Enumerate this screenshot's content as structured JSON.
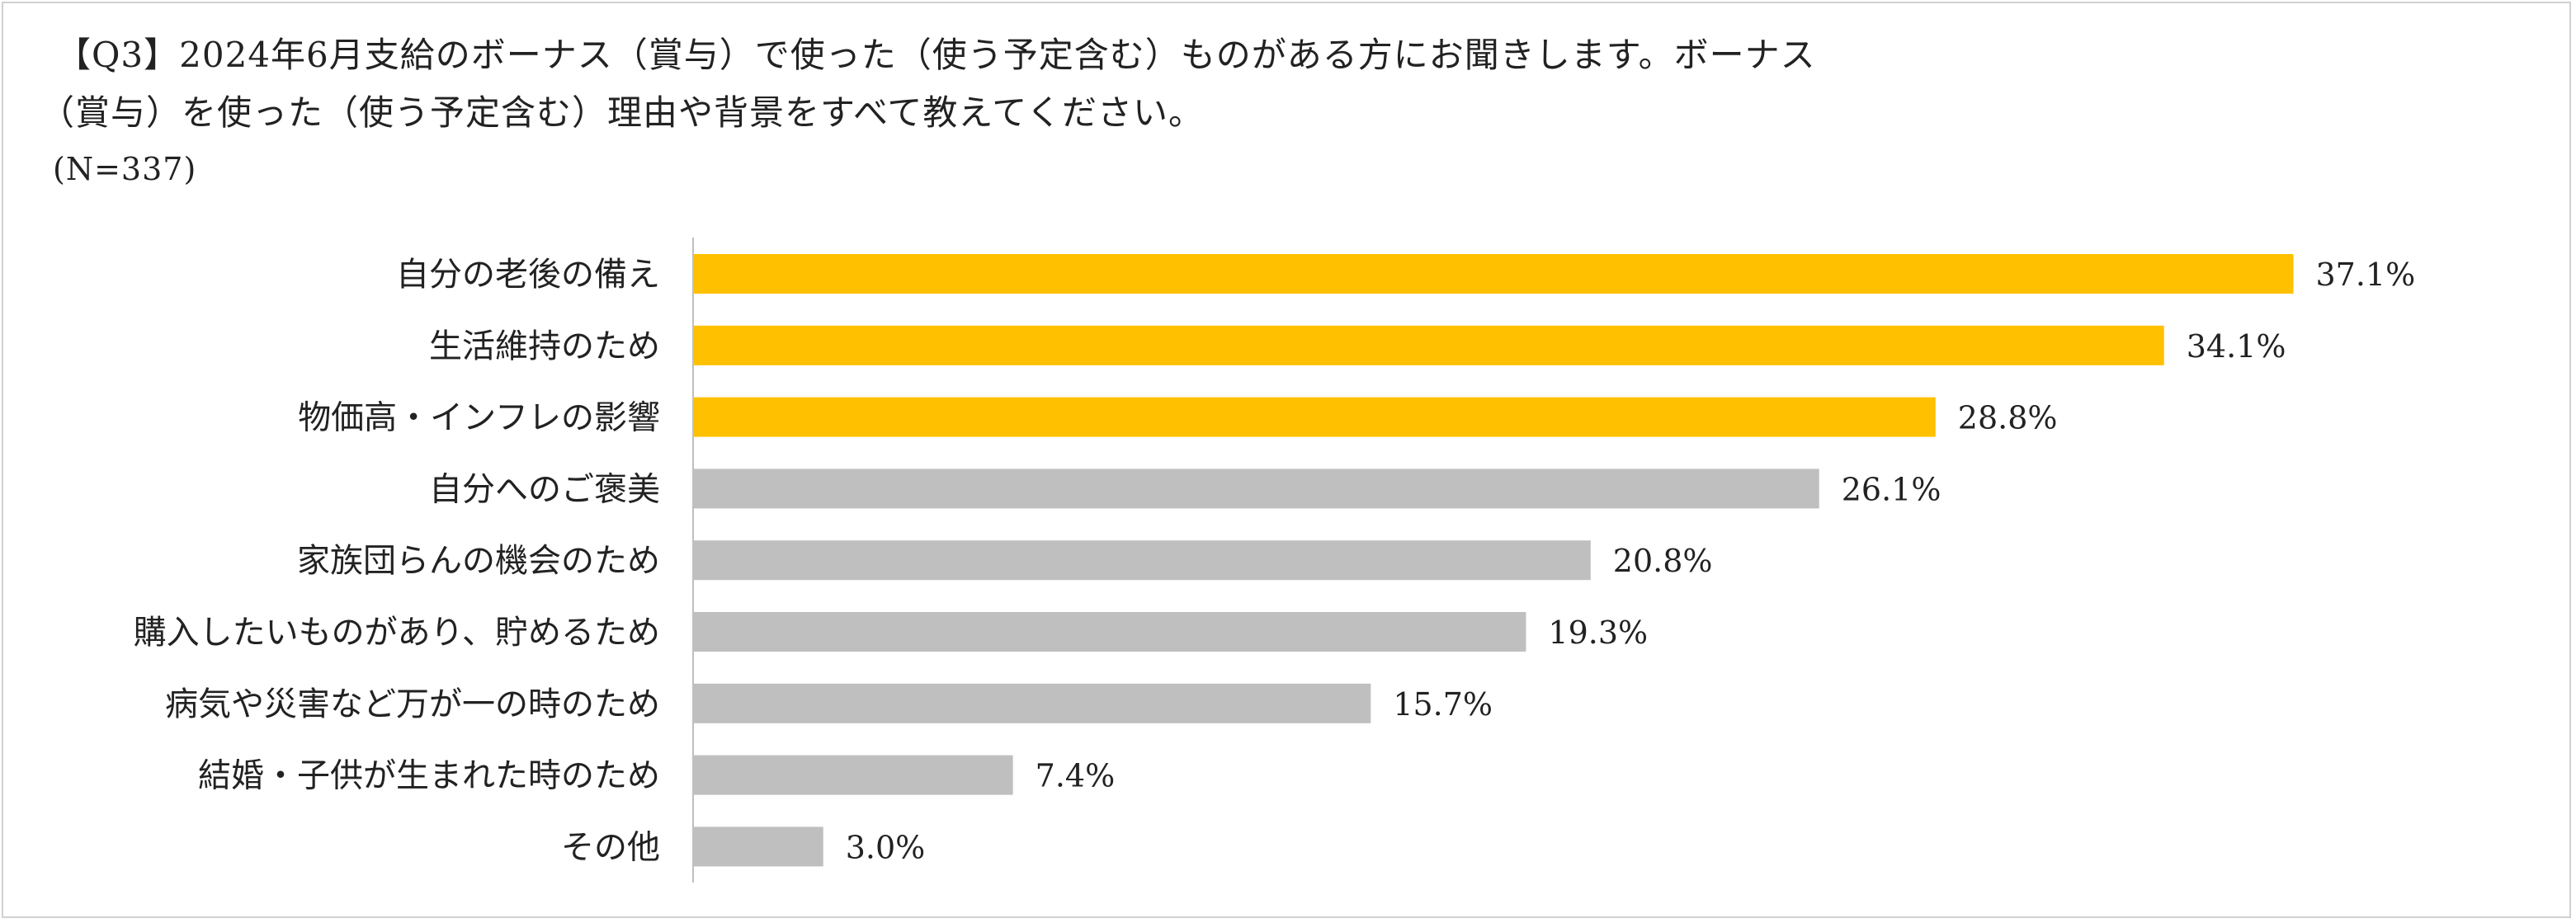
{
  "title": {
    "line1": "【Q3】2024年6月支給のボーナス（賞与）で使った（使う予定含む）ものがある方にお聞きします。ボーナス",
    "line2": "（賞与）を使った（使う予定含む）理由や背景をすべて教えてください。",
    "sample_size": "(N=337)"
  },
  "colors": {
    "highlight": "#FFC000",
    "normal": "#BFBFBF",
    "axis": "#BFBFBF"
  },
  "chart_data": {
    "type": "bar",
    "orientation": "horizontal",
    "title": "【Q3】2024年6月支給のボーナス（賞与）で使った（使う予定含む）ものがある方にお聞きします。ボーナス（賞与）を使った（使う予定含む）理由や背景をすべて教えてください。",
    "xlim": [
      0,
      40
    ],
    "unit": "%",
    "categories": [
      "自分の老後の備え",
      "生活維持のため",
      "物価高・インフレの影響",
      "自分へのご褒美",
      "家族団らんの機会のため",
      "購入したいものがあり、貯めるため",
      "病気や災害など万が一の時のため",
      "結婚・子供が生まれた時のため",
      "その他"
    ],
    "values": [
      37.1,
      34.1,
      28.8,
      26.1,
      20.8,
      19.3,
      15.7,
      7.4,
      3.0
    ],
    "value_labels": [
      "37.1%",
      "34.1%",
      "28.8%",
      "26.1%",
      "20.8%",
      "19.3%",
      "15.7%",
      "7.4%",
      "3.0%"
    ],
    "highlighted": [
      true,
      true,
      true,
      false,
      false,
      false,
      false,
      false,
      false
    ]
  }
}
